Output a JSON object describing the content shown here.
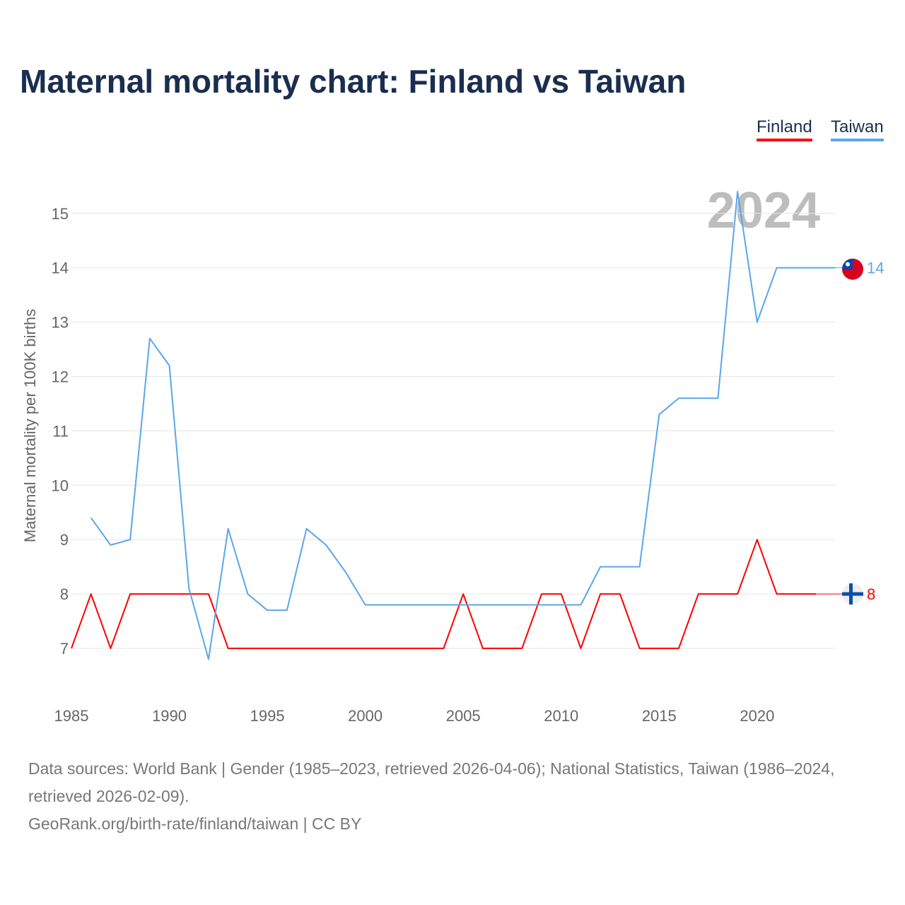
{
  "chart_data": {
    "type": "line",
    "title": "Maternal mortality chart: Finland vs Taiwan",
    "ylabel": "Maternal mortality per 100K births",
    "xlabel": "",
    "year_watermark": "2024",
    "xlim": [
      1985,
      2024
    ],
    "ylim": [
      6.2,
      15.6
    ],
    "x_ticks": [
      1985,
      1990,
      1995,
      2000,
      2005,
      2010,
      2015,
      2020
    ],
    "y_ticks": [
      7,
      8,
      9,
      10,
      11,
      12,
      13,
      14,
      15
    ],
    "grid": true,
    "legend_placement": "top-right",
    "series": [
      {
        "name": "Finland",
        "color": "#ff0000",
        "end_label": "8",
        "x": [
          1985,
          1986,
          1987,
          1988,
          1989,
          1990,
          1991,
          1992,
          1993,
          1994,
          1995,
          1996,
          1997,
          1998,
          1999,
          2000,
          2001,
          2002,
          2003,
          2004,
          2005,
          2006,
          2007,
          2008,
          2009,
          2010,
          2011,
          2012,
          2013,
          2014,
          2015,
          2016,
          2017,
          2018,
          2019,
          2020,
          2021,
          2022,
          2023
        ],
        "values": [
          7,
          8,
          7,
          8,
          8,
          8,
          8,
          8,
          7,
          7,
          7,
          7,
          7,
          7,
          7,
          7,
          7,
          7,
          7,
          7,
          8,
          7,
          7,
          7,
          8,
          8,
          7,
          8,
          8,
          7,
          7,
          7,
          8,
          8,
          8,
          9,
          8,
          8,
          8
        ]
      },
      {
        "name": "Taiwan",
        "color": "#5ba6ea",
        "end_label": "14",
        "x": [
          1986,
          1987,
          1988,
          1989,
          1990,
          1991,
          1992,
          1993,
          1994,
          1995,
          1996,
          1997,
          1998,
          1999,
          2000,
          2001,
          2002,
          2003,
          2004,
          2005,
          2006,
          2007,
          2008,
          2009,
          2010,
          2011,
          2012,
          2013,
          2014,
          2015,
          2016,
          2017,
          2018,
          2019,
          2020,
          2021,
          2022,
          2023,
          2024
        ],
        "values": [
          9.4,
          8.9,
          9.0,
          12.7,
          12.2,
          8.1,
          6.8,
          9.2,
          8.0,
          7.7,
          7.7,
          9.2,
          8.9,
          8.4,
          7.8,
          7.8,
          7.8,
          7.8,
          7.8,
          7.8,
          7.8,
          7.8,
          7.8,
          7.8,
          7.8,
          7.8,
          8.5,
          8.5,
          8.5,
          11.3,
          11.6,
          11.6,
          11.6,
          15.4,
          13.0,
          14,
          14,
          14,
          14
        ]
      }
    ]
  },
  "footer": {
    "line1": "Data sources: World Bank | Gender (1985–2023, retrieved 2026-04-06); National Statistics, Taiwan (1986–2024, retrieved 2026-02-09).",
    "line2": "GeoRank.org/birth-rate/finland/taiwan | CC BY"
  }
}
